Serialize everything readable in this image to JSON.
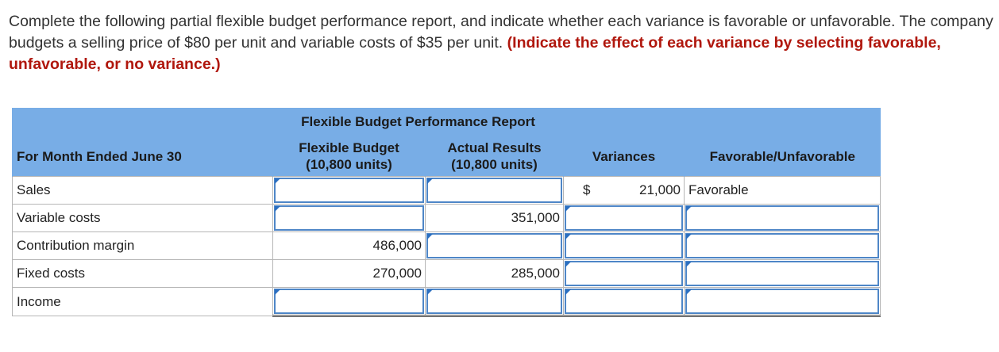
{
  "instructions": {
    "text": "Complete the following partial flexible budget performance report, and indicate whether each variance is favorable or unfavorable. The company budgets a selling price of $80 per unit and variable costs of $35 per unit.",
    "emphasis": "(Indicate the effect of each variance by selecting favorable, unfavorable, or no variance.)"
  },
  "report": {
    "title": "Flexible Budget Performance Report",
    "period_label": "For Month Ended June 30",
    "col_flexible": "Flexible Budget",
    "col_flexible_units": "(10,800 units)",
    "col_actual": "Actual Results",
    "col_actual_units": "(10,800 units)",
    "col_variances": "Variances",
    "col_effect": "Favorable/Unfavorable",
    "rows": [
      {
        "label": "Sales",
        "flexible": "",
        "actual": "",
        "currency": "$",
        "variance": "21,000",
        "effect": "Favorable"
      },
      {
        "label": "Variable costs",
        "flexible": "",
        "actual": "351,000",
        "currency": "",
        "variance": "",
        "effect": ""
      },
      {
        "label": "Contribution margin",
        "flexible": "486,000",
        "actual": "",
        "currency": "",
        "variance": "",
        "effect": ""
      },
      {
        "label": "Fixed costs",
        "flexible": "270,000",
        "actual": "285,000",
        "currency": "",
        "variance": "",
        "effect": ""
      },
      {
        "label": "Income",
        "flexible": "",
        "actual": "",
        "currency": "",
        "variance": "",
        "effect": ""
      }
    ]
  },
  "colors": {
    "header_bg": "#78ade6",
    "emphasis": "#b0170d",
    "input_border": "#4e86c7"
  }
}
